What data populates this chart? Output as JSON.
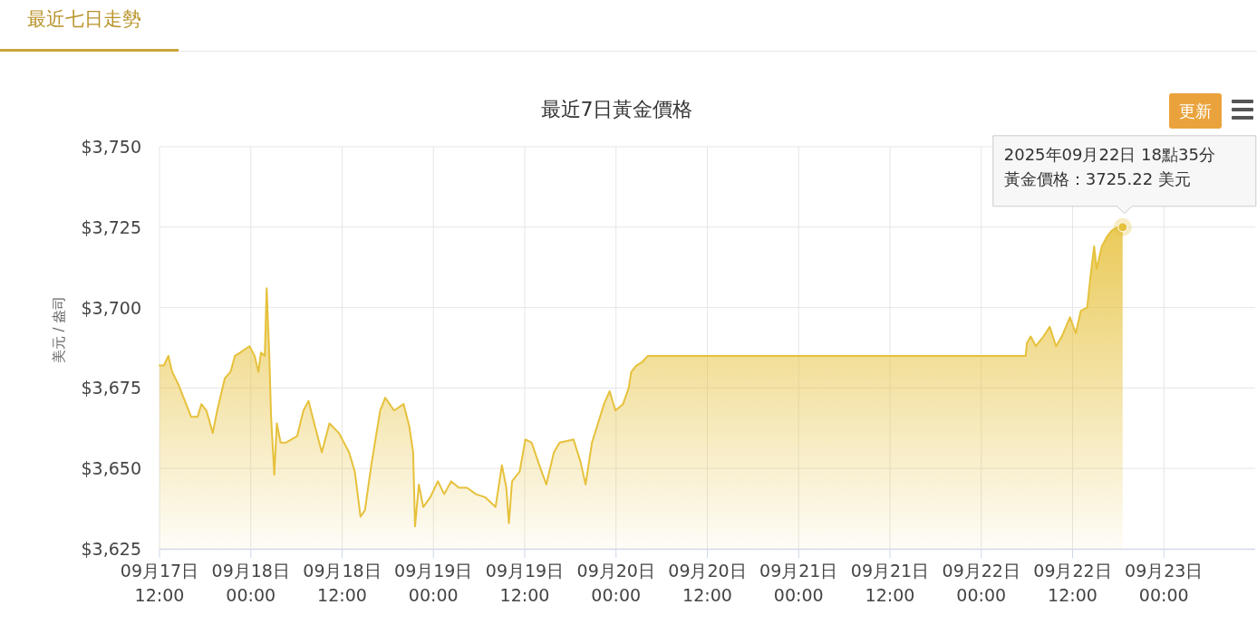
{
  "chart_data": {
    "type": "area",
    "title": "最近7日黃金價格",
    "ylabel": "美元 / 盎司",
    "annotations": [
      "最近七日走勢",
      "更新",
      "2025年09月22日 18點35分",
      "黃金價格：3725.22 美元"
    ],
    "x": [
      "2025-09-17T12:00",
      "2025-09-17T12:35",
      "2025-09-17T13:10",
      "2025-09-17T13:40",
      "2025-09-17T14:30",
      "2025-09-17T15:10",
      "2025-09-17T16:10",
      "2025-09-17T17:00",
      "2025-09-17T17:30",
      "2025-09-17T18:10",
      "2025-09-17T19:00",
      "2025-09-17T19:35",
      "2025-09-17T20:35",
      "2025-09-17T21:20",
      "2025-09-17T21:55",
      "2025-09-17T22:35",
      "2025-09-17T23:50",
      "2025-09-18T00:30",
      "2025-09-18T01:00",
      "2025-09-18T01:20",
      "2025-09-18T01:50",
      "2025-09-18T02:05",
      "2025-09-18T02:25",
      "2025-09-18T02:40",
      "2025-09-18T03:05",
      "2025-09-18T03:25",
      "2025-09-18T03:55",
      "2025-09-18T04:35",
      "2025-09-18T06:05",
      "2025-09-18T06:55",
      "2025-09-18T07:35",
      "2025-09-18T08:20",
      "2025-09-18T09:20",
      "2025-09-18T10:20",
      "2025-09-18T11:35",
      "2025-09-18T12:55",
      "2025-09-18T13:40",
      "2025-09-18T14:25",
      "2025-09-18T15:00",
      "2025-09-18T15:50",
      "2025-09-18T17:00",
      "2025-09-18T17:40",
      "2025-09-18T18:50",
      "2025-09-18T20:05",
      "2025-09-18T20:50",
      "2025-09-18T21:20",
      "2025-09-18T21:35",
      "2025-09-18T22:05",
      "2025-09-18T22:40",
      "2025-09-18T23:35",
      "2025-09-19T00:35",
      "2025-09-19T01:25",
      "2025-09-19T02:20",
      "2025-09-19T03:20",
      "2025-09-19T04:25",
      "2025-09-19T05:35",
      "2025-09-19T06:50",
      "2025-09-19T08:10",
      "2025-09-19T09:00",
      "2025-09-19T09:35",
      "2025-09-19T09:55",
      "2025-09-19T10:20",
      "2025-09-19T11:20",
      "2025-09-19T12:05",
      "2025-09-19T12:55",
      "2025-09-19T13:55",
      "2025-09-19T14:50",
      "2025-09-19T15:50",
      "2025-09-19T16:35",
      "2025-09-19T18:25",
      "2025-09-19T19:20",
      "2025-09-19T20:00",
      "2025-09-19T20:50",
      "2025-09-19T21:30",
      "2025-09-19T22:25",
      "2025-09-19T23:10",
      "2025-09-19T23:55",
      "2025-09-20T00:55",
      "2025-09-20T01:40",
      "2025-09-20T02:00",
      "2025-09-20T02:40",
      "2025-09-20T03:25",
      "2025-09-20T04:10",
      "2025-09-22T05:50",
      "2025-09-22T06:00",
      "2025-09-22T06:30",
      "2025-09-22T07:10",
      "2025-09-22T08:10",
      "2025-09-22T09:00",
      "2025-09-22T09:50",
      "2025-09-22T10:35",
      "2025-09-22T11:40",
      "2025-09-22T12:25",
      "2025-09-22T13:05",
      "2025-09-22T13:55",
      "2025-09-22T14:25",
      "2025-09-22T14:50",
      "2025-09-22T15:10",
      "2025-09-22T15:50",
      "2025-09-22T16:30",
      "2025-09-22T17:10",
      "2025-09-22T17:55",
      "2025-09-22T18:35"
    ],
    "values": [
      3682,
      3682,
      3685,
      3680,
      3676,
      3672,
      3666,
      3666,
      3670,
      3668,
      3661,
      3668,
      3678,
      3680,
      3685,
      3686,
      3688,
      3685,
      3680,
      3686,
      3685,
      3706,
      3686,
      3666,
      3648,
      3664,
      3658,
      3658,
      3660,
      3668,
      3671,
      3664,
      3655,
      3664,
      3661,
      3655,
      3649,
      3635,
      3637,
      3651,
      3668,
      3672,
      3668,
      3670,
      3663,
      3655,
      3632,
      3645,
      3638,
      3641,
      3646,
      3642,
      3646,
      3644,
      3644,
      3642,
      3641,
      3638,
      3651,
      3644,
      3633,
      3646,
      3649,
      3659,
      3658,
      3651,
      3645,
      3655,
      3658,
      3659,
      3652,
      3645,
      3658,
      3663,
      3670,
      3674,
      3668,
      3670,
      3675,
      3680,
      3682,
      3683,
      3685,
      3685,
      3689,
      3691,
      3688,
      3691,
      3694,
      3688,
      3691,
      3697,
      3692,
      3699,
      3700,
      3711,
      3719,
      3712,
      3719,
      3722,
      3724,
      3725,
      3725
    ],
    "color": "#e6c13c",
    "xlim": [
      "2025-09-17T12:00",
      "2025-09-23T12:00"
    ],
    "xticks": [
      {
        "value": "2025-09-17T12:00",
        "label": "09月17日\n12:00"
      },
      {
        "value": "2025-09-18T00:00",
        "label": "09月18日\n00:00"
      },
      {
        "value": "2025-09-18T12:00",
        "label": "09月18日\n12:00"
      },
      {
        "value": "2025-09-19T00:00",
        "label": "09月19日\n00:00"
      },
      {
        "value": "2025-09-19T12:00",
        "label": "09月19日\n12:00"
      },
      {
        "value": "2025-09-20T00:00",
        "label": "09月20日\n00:00"
      },
      {
        "value": "2025-09-20T12:00",
        "label": "09月20日\n12:00"
      },
      {
        "value": "2025-09-21T00:00",
        "label": "09月21日\n00:00"
      },
      {
        "value": "2025-09-21T12:00",
        "label": "09月21日\n12:00"
      },
      {
        "value": "2025-09-22T00:00",
        "label": "09月22日\n00:00"
      },
      {
        "value": "2025-09-22T12:00",
        "label": "09月22日\n12:00"
      },
      {
        "value": "2025-09-23T00:00",
        "label": "09月23日\n00:00"
      }
    ],
    "ylim": [
      3625,
      3750
    ],
    "yticks": [
      {
        "value": 3625,
        "label": "$3,625"
      },
      {
        "value": 3650,
        "label": "$3,650"
      },
      {
        "value": 3675,
        "label": "$3,675"
      },
      {
        "value": 3700,
        "label": "$3,700"
      },
      {
        "value": 3725,
        "label": "$3,725"
      },
      {
        "value": 3750,
        "label": "$3,750"
      }
    ],
    "grid": true,
    "marker": "none"
  }
}
